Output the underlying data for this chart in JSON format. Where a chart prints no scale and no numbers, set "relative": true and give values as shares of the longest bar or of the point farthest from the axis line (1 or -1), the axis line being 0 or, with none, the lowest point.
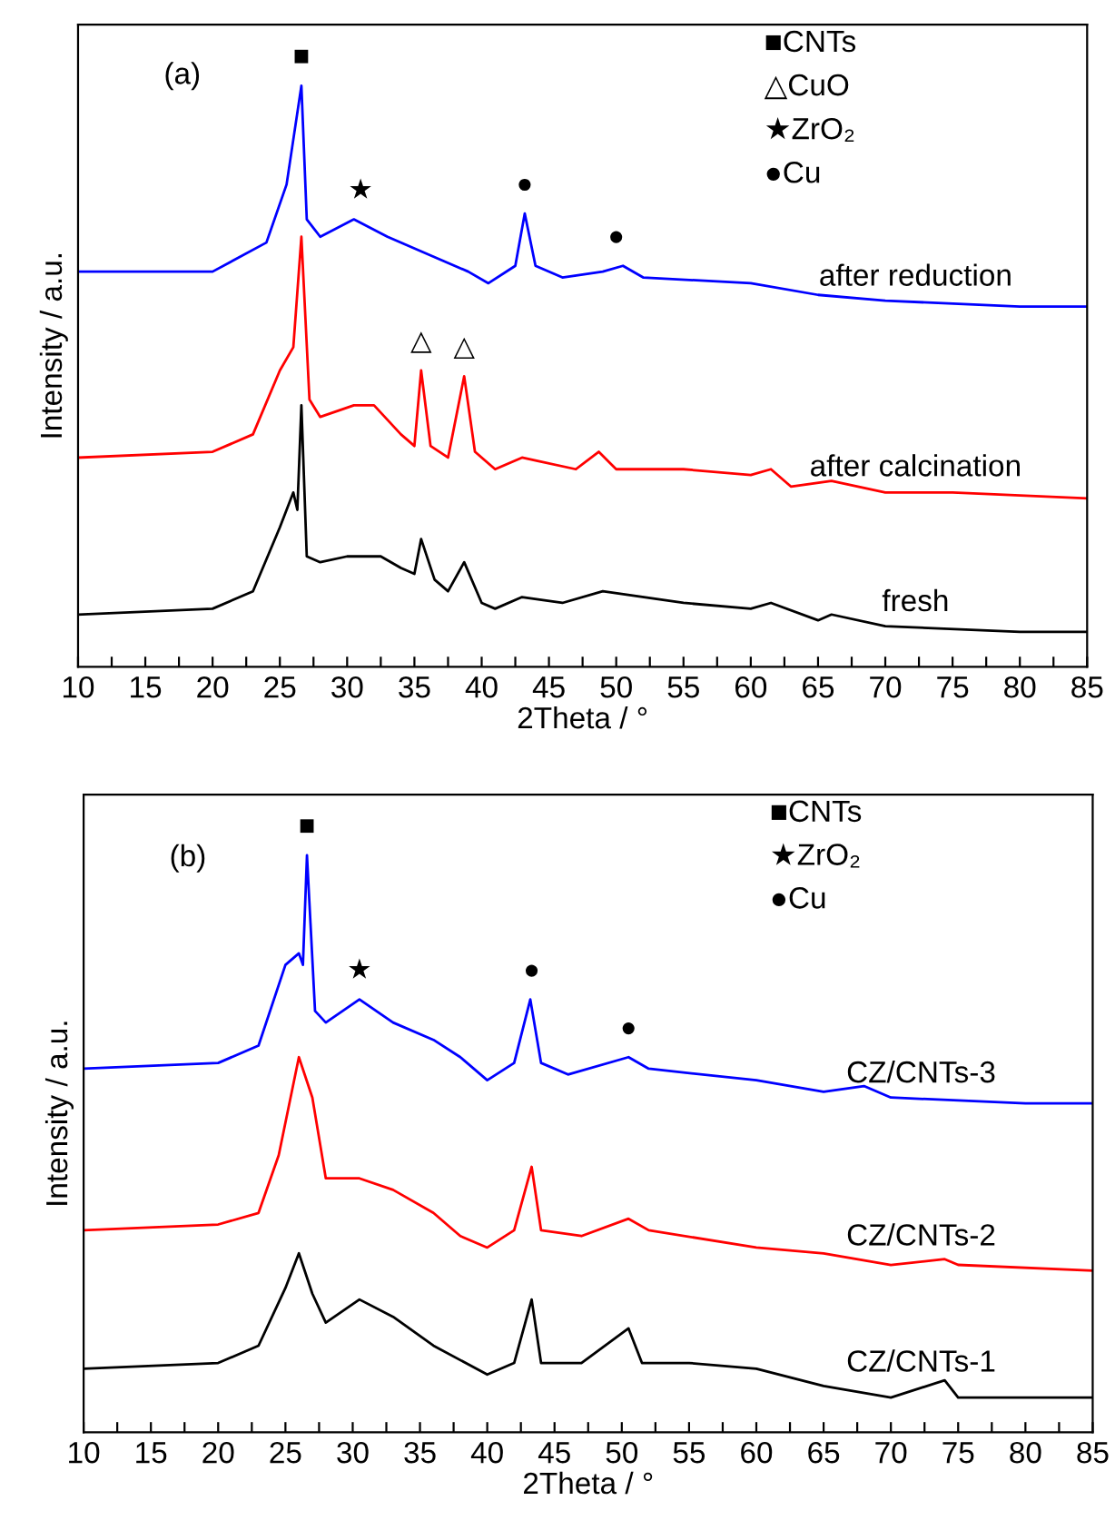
{
  "chart_data": [
    {
      "type": "line",
      "relative": true,
      "xlabel": "2Theta / °",
      "ylabel": "Intensity / a.u.",
      "xlim": [
        10,
        85
      ],
      "xticks": [
        10,
        {
          "value": 12.5,
          "label": null
        },
        15,
        {
          "value": 17.5,
          "label": null
        },
        20,
        {
          "value": 22.5,
          "label": null
        },
        25,
        {
          "value": 27.5,
          "label": null
        },
        30,
        {
          "value": 32.5,
          "label": null
        },
        35,
        {
          "value": 37.5,
          "label": null
        },
        40,
        {
          "value": 42.5,
          "label": null
        },
        45,
        {
          "value": 47.5,
          "label": null
        },
        50,
        {
          "value": 52.5,
          "label": null
        },
        55,
        {
          "value": 57.5,
          "label": null
        },
        60,
        {
          "value": 62.5,
          "label": null
        },
        65,
        {
          "value": 67.5,
          "label": null
        },
        70,
        {
          "value": 72.5,
          "label": null
        },
        75,
        {
          "value": 77.5,
          "label": null
        },
        80,
        {
          "value": 82.5,
          "label": null
        },
        85
      ],
      "annotations": [
        "(a)",
        "■CNTs",
        "△CuO",
        "★ZrO₂",
        "●Cu",
        {
          "text": "■",
          "x": 26.6,
          "y": 1.0
        },
        {
          "text": "★",
          "x": 31,
          "y": 0.77
        },
        {
          "text": "●",
          "x": 43.2,
          "y": 0.78
        },
        {
          "text": "●",
          "x": 50,
          "y": 0.69
        },
        {
          "text": "△",
          "x": 35.5,
          "y": 0.51
        },
        {
          "text": "△",
          "x": 38.7,
          "y": 0.5
        }
      ],
      "series": [
        {
          "name": "after reduction",
          "color": "#0000ff",
          "x": [
            10,
            20,
            24,
            25.5,
            26.6,
            27,
            28,
            30.5,
            33,
            36,
            39,
            40.5,
            42.5,
            43.2,
            44,
            46,
            49,
            50.5,
            52,
            60,
            65,
            70,
            80,
            85
          ],
          "values": [
            0.68,
            0.68,
            0.73,
            0.83,
            1.0,
            0.77,
            0.74,
            0.77,
            0.74,
            0.71,
            0.68,
            0.66,
            0.69,
            0.78,
            0.69,
            0.67,
            0.68,
            0.69,
            0.67,
            0.66,
            0.64,
            0.63,
            0.62,
            0.62
          ]
        },
        {
          "name": "after calcination",
          "color": "#ff0000",
          "x": [
            10,
            20,
            23,
            25,
            26,
            26.6,
            27.2,
            28,
            30.5,
            32,
            34,
            35,
            35.5,
            36.2,
            37.5,
            38.7,
            39.5,
            41,
            43,
            47,
            48.7,
            50,
            55,
            60,
            61.5,
            63,
            66,
            70,
            75,
            85
          ],
          "values": [
            0.36,
            0.37,
            0.4,
            0.51,
            0.55,
            0.74,
            0.46,
            0.43,
            0.45,
            0.45,
            0.4,
            0.38,
            0.51,
            0.38,
            0.36,
            0.5,
            0.37,
            0.34,
            0.36,
            0.34,
            0.37,
            0.34,
            0.34,
            0.33,
            0.34,
            0.31,
            0.32,
            0.3,
            0.3,
            0.29
          ]
        },
        {
          "name": "fresh",
          "color": "#000000",
          "x": [
            10,
            20,
            23,
            25,
            26,
            26.3,
            26.6,
            27,
            28,
            30,
            32.5,
            34,
            35,
            35.5,
            36.5,
            37.5,
            38.7,
            40,
            41,
            43,
            46,
            49,
            55,
            60,
            61.5,
            65,
            66,
            70,
            80,
            85
          ],
          "values": [
            0.09,
            0.1,
            0.13,
            0.24,
            0.3,
            0.27,
            0.45,
            0.19,
            0.18,
            0.19,
            0.19,
            0.17,
            0.16,
            0.22,
            0.15,
            0.13,
            0.18,
            0.11,
            0.1,
            0.12,
            0.11,
            0.13,
            0.11,
            0.1,
            0.11,
            0.08,
            0.09,
            0.07,
            0.06,
            0.06
          ]
        }
      ]
    },
    {
      "type": "line",
      "relative": true,
      "xlabel": "2Theta / °",
      "ylabel": "Intensity / a.u.",
      "xlim": [
        10,
        85
      ],
      "xticks": [
        10,
        {
          "value": 12.5,
          "label": null
        },
        15,
        {
          "value": 17.5,
          "label": null
        },
        20,
        {
          "value": 22.5,
          "label": null
        },
        25,
        {
          "value": 27.5,
          "label": null
        },
        30,
        {
          "value": 32.5,
          "label": null
        },
        35,
        {
          "value": 37.5,
          "label": null
        },
        40,
        {
          "value": 42.5,
          "label": null
        },
        45,
        {
          "value": 47.5,
          "label": null
        },
        50,
        {
          "value": 52.5,
          "label": null
        },
        55,
        {
          "value": 57.5,
          "label": null
        },
        60,
        {
          "value": 62.5,
          "label": null
        },
        65,
        {
          "value": 67.5,
          "label": null
        },
        70,
        {
          "value": 72.5,
          "label": null
        },
        75,
        {
          "value": 77.5,
          "label": null
        },
        80,
        {
          "value": 82.5,
          "label": null
        },
        85
      ],
      "annotations": [
        "(b)",
        "■CNTs",
        "★ZrO₂",
        "●Cu",
        {
          "text": "■",
          "x": 26.6,
          "y": 1.0
        },
        {
          "text": "★",
          "x": 30.5,
          "y": 0.75
        },
        {
          "text": "●",
          "x": 43.3,
          "y": 0.75
        },
        {
          "text": "●",
          "x": 50.5,
          "y": 0.65
        }
      ],
      "series": [
        {
          "name": "CZ/CNTs-3",
          "color": "#0000ff",
          "x": [
            10,
            20,
            23,
            25,
            26,
            26.3,
            26.6,
            27.2,
            28,
            30.5,
            33,
            36,
            38,
            40,
            42,
            43.2,
            44,
            46,
            50.5,
            52,
            60,
            65,
            68,
            70,
            80,
            85
          ],
          "values": [
            0.63,
            0.64,
            0.67,
            0.81,
            0.83,
            0.81,
            1.0,
            0.73,
            0.71,
            0.75,
            0.71,
            0.68,
            0.65,
            0.61,
            0.64,
            0.75,
            0.64,
            0.62,
            0.65,
            0.63,
            0.61,
            0.59,
            0.6,
            0.58,
            0.57,
            0.57
          ]
        },
        {
          "name": "CZ/CNTs-2",
          "color": "#ff0000",
          "x": [
            10,
            20,
            23,
            24.5,
            26,
            27,
            28,
            30.5,
            33,
            36,
            38,
            40,
            42,
            43.3,
            44,
            47,
            50.5,
            52,
            60,
            65,
            70,
            74,
            75,
            85
          ],
          "values": [
            0.35,
            0.36,
            0.38,
            0.48,
            0.65,
            0.58,
            0.44,
            0.44,
            0.42,
            0.38,
            0.34,
            0.32,
            0.35,
            0.46,
            0.35,
            0.34,
            0.37,
            0.35,
            0.32,
            0.31,
            0.29,
            0.3,
            0.29,
            0.28
          ]
        },
        {
          "name": "CZ/CNTs-1",
          "color": "#000000",
          "x": [
            10,
            20,
            23,
            25,
            26,
            27,
            28,
            30.5,
            33,
            36,
            40,
            42,
            43.3,
            44,
            47,
            50.5,
            51.5,
            55,
            60,
            65,
            70,
            74,
            75,
            85
          ],
          "values": [
            0.11,
            0.12,
            0.15,
            0.25,
            0.31,
            0.24,
            0.19,
            0.23,
            0.2,
            0.15,
            0.1,
            0.12,
            0.23,
            0.12,
            0.12,
            0.18,
            0.12,
            0.12,
            0.11,
            0.08,
            0.06,
            0.09,
            0.06,
            0.06
          ]
        }
      ]
    }
  ]
}
